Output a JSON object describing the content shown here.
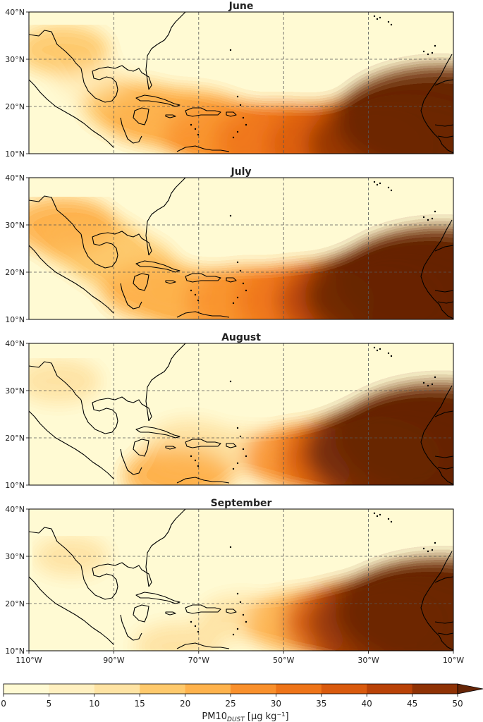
{
  "chart_data": {
    "type": "heatmap",
    "panels": [
      {
        "title": "June",
        "dust_hotspots": [
          {
            "lon": -13,
            "lat": 17,
            "value": 55
          },
          {
            "lon": -22,
            "lat": 12,
            "value": 48
          },
          {
            "lon": -35,
            "lat": 12,
            "value": 38
          },
          {
            "lon": -50,
            "lat": 13,
            "value": 30
          },
          {
            "lon": -63,
            "lat": 14,
            "value": 27
          },
          {
            "lon": -72,
            "lat": 17,
            "value": 24
          },
          {
            "lon": -80,
            "lat": 18,
            "value": 21
          },
          {
            "lon": -86,
            "lat": 20,
            "value": 17
          },
          {
            "lon": -95,
            "lat": 25,
            "value": 9
          },
          {
            "lon": -102,
            "lat": 32,
            "value": 16
          }
        ]
      },
      {
        "title": "July",
        "dust_hotspots": [
          {
            "lon": -13,
            "lat": 18,
            "value": 55
          },
          {
            "lon": -22,
            "lat": 15,
            "value": 50
          },
          {
            "lon": -32,
            "lat": 14,
            "value": 40
          },
          {
            "lon": -45,
            "lat": 14,
            "value": 31
          },
          {
            "lon": -58,
            "lat": 14,
            "value": 27
          },
          {
            "lon": -70,
            "lat": 14,
            "value": 24
          },
          {
            "lon": -80,
            "lat": 16,
            "value": 21
          },
          {
            "lon": -88,
            "lat": 22,
            "value": 19
          },
          {
            "lon": -95,
            "lat": 26,
            "value": 19
          },
          {
            "lon": -102,
            "lat": 30,
            "value": 20
          }
        ]
      },
      {
        "title": "August",
        "dust_hotspots": [
          {
            "lon": -13,
            "lat": 20,
            "value": 55
          },
          {
            "lon": -22,
            "lat": 17,
            "value": 50
          },
          {
            "lon": -32,
            "lat": 16,
            "value": 38
          },
          {
            "lon": -45,
            "lat": 16,
            "value": 25
          },
          {
            "lon": -60,
            "lat": 17,
            "value": 14
          },
          {
            "lon": -72,
            "lat": 19,
            "value": 14
          },
          {
            "lon": -75,
            "lat": 12,
            "value": 21
          },
          {
            "lon": -103,
            "lat": 32,
            "value": 13
          }
        ]
      },
      {
        "title": "September",
        "dust_hotspots": [
          {
            "lon": -13,
            "lat": 18,
            "value": 55
          },
          {
            "lon": -22,
            "lat": 16,
            "value": 48
          },
          {
            "lon": -32,
            "lat": 16,
            "value": 36
          },
          {
            "lon": -45,
            "lat": 16,
            "value": 24
          },
          {
            "lon": -60,
            "lat": 17,
            "value": 13
          },
          {
            "lon": -75,
            "lat": 11,
            "value": 14
          },
          {
            "lon": -100,
            "lat": 30,
            "value": 10
          }
        ]
      }
    ],
    "x_ticks": [
      "110°W",
      "90°W",
      "70°W",
      "50°W",
      "30°W",
      "10°W"
    ],
    "x_tick_values": [
      -110,
      -90,
      -70,
      -50,
      -30,
      -10
    ],
    "y_ticks": [
      "10°N",
      "20°N",
      "30°N",
      "40°N"
    ],
    "y_tick_values": [
      10,
      20,
      30,
      40
    ],
    "xlim": [
      -110,
      -10
    ],
    "ylim": [
      10,
      40
    ],
    "grid": true,
    "colorbar": {
      "levels": [
        0,
        5,
        10,
        15,
        20,
        25,
        30,
        35,
        40,
        45,
        50
      ],
      "tick_labels": [
        "0",
        "5",
        "10",
        "15",
        "20",
        "25",
        "30",
        "35",
        "40",
        "45",
        "50"
      ],
      "colors": [
        "#fffad3",
        "#fff0c0",
        "#fee3a3",
        "#fec96c",
        "#feb24c",
        "#f9902c",
        "#ee7418",
        "#d95a0e",
        "#b94207",
        "#8f3205",
        "#662506"
      ],
      "extend": "max",
      "label_main": "PM10",
      "label_sub": "DUST",
      "label_unit": " [μg kg⁻¹]",
      "placement": "bottom"
    }
  }
}
